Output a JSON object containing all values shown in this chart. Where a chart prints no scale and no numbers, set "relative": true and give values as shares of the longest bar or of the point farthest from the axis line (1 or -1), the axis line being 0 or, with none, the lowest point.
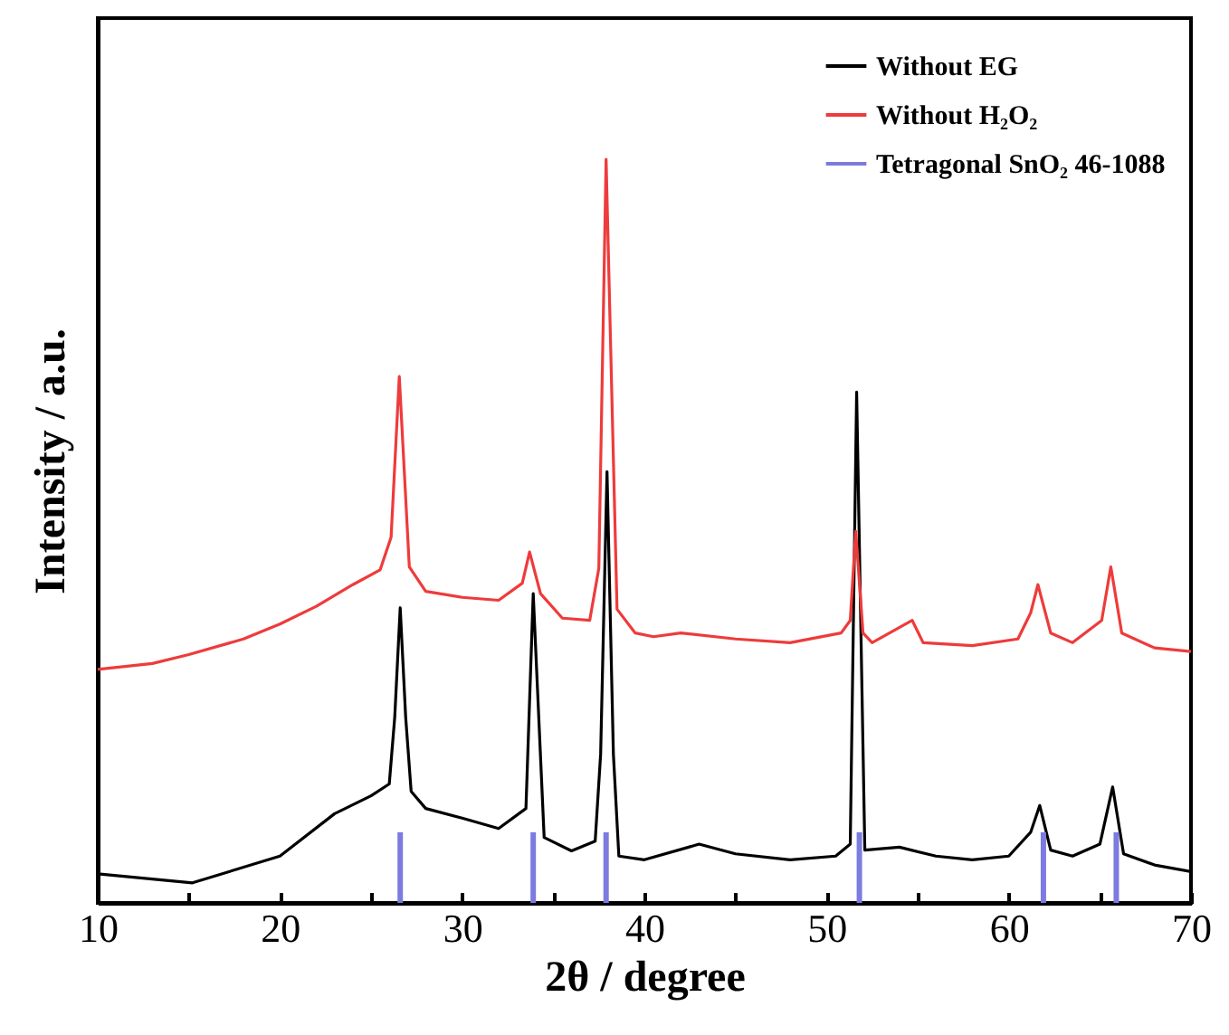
{
  "chart_data": {
    "type": "line",
    "relative": true,
    "xlabel": "2θ / degree",
    "ylabel": "Intensity / a.u.",
    "xlim": [
      10,
      70
    ],
    "xticks": [
      10,
      {
        "value": 15,
        "label": null
      },
      20,
      {
        "value": 25,
        "label": null
      },
      30,
      {
        "value": 35,
        "label": null
      },
      40,
      {
        "value": 45,
        "label": null
      },
      50,
      {
        "value": 55,
        "label": null
      },
      60,
      {
        "value": 65,
        "label": null
      },
      70
    ],
    "legend": "top right",
    "series": [
      {
        "name": "Without EG",
        "color": "#000000",
        "x": [
          10,
          15.2,
          20,
          23,
          25,
          26,
          26.3,
          26.6,
          26.9,
          27.2,
          28,
          30,
          32,
          33.5,
          33.9,
          34.5,
          36,
          37.3,
          37.6,
          37.95,
          38.3,
          38.6,
          40,
          43,
          45,
          48,
          50.5,
          51.3,
          51.65,
          52.1,
          54,
          56,
          58,
          60,
          61.2,
          61.7,
          62.3,
          63.5,
          65,
          65.7,
          66.3,
          68,
          70
        ],
        "values": [
          0.039,
          0.027,
          0.063,
          0.12,
          0.144,
          0.16,
          0.25,
          0.397,
          0.25,
          0.15,
          0.127,
          0.114,
          0.1,
          0.127,
          0.416,
          0.088,
          0.07,
          0.083,
          0.2,
          0.58,
          0.2,
          0.063,
          0.058,
          0.079,
          0.066,
          0.058,
          0.063,
          0.079,
          0.687,
          0.071,
          0.075,
          0.063,
          0.058,
          0.063,
          0.095,
          0.131,
          0.071,
          0.063,
          0.079,
          0.156,
          0.066,
          0.051,
          0.042
        ]
      },
      {
        "name": "Without H₂O₂",
        "color": "#ee3b3b",
        "x": [
          10,
          13,
          15,
          18,
          20,
          22,
          24,
          25.5,
          26.1,
          26.55,
          27.1,
          28,
          30,
          32,
          33.3,
          33.7,
          34.3,
          35.5,
          37,
          37.5,
          37.9,
          38.5,
          39.5,
          40.5,
          42,
          45,
          48,
          50.8,
          51.3,
          51.6,
          52,
          52.5,
          54.7,
          55.3,
          58,
          60.5,
          61.2,
          61.6,
          62.3,
          63.5,
          65.1,
          65.6,
          66.2,
          68,
          70
        ],
        "values": [
          0.314,
          0.322,
          0.334,
          0.355,
          0.375,
          0.399,
          0.428,
          0.448,
          0.492,
          0.708,
          0.452,
          0.419,
          0.411,
          0.407,
          0.43,
          0.472,
          0.416,
          0.383,
          0.38,
          0.45,
          1,
          0.395,
          0.363,
          0.358,
          0.363,
          0.355,
          0.35,
          0.363,
          0.38,
          0.5,
          0.363,
          0.35,
          0.38,
          0.35,
          0.346,
          0.355,
          0.39,
          0.428,
          0.363,
          0.35,
          0.38,
          0.452,
          0.363,
          0.343,
          0.338
        ]
      },
      {
        "name": "Tetragonal SnO₂ 46-1088",
        "type": "bar",
        "color": "#7b7be0",
        "x": [
          26.6,
          33.9,
          37.9,
          51.8,
          61.9,
          65.9
        ],
        "values": [
          0.095,
          0.095,
          0.095,
          0.095,
          0.095,
          0.095
        ]
      }
    ]
  }
}
